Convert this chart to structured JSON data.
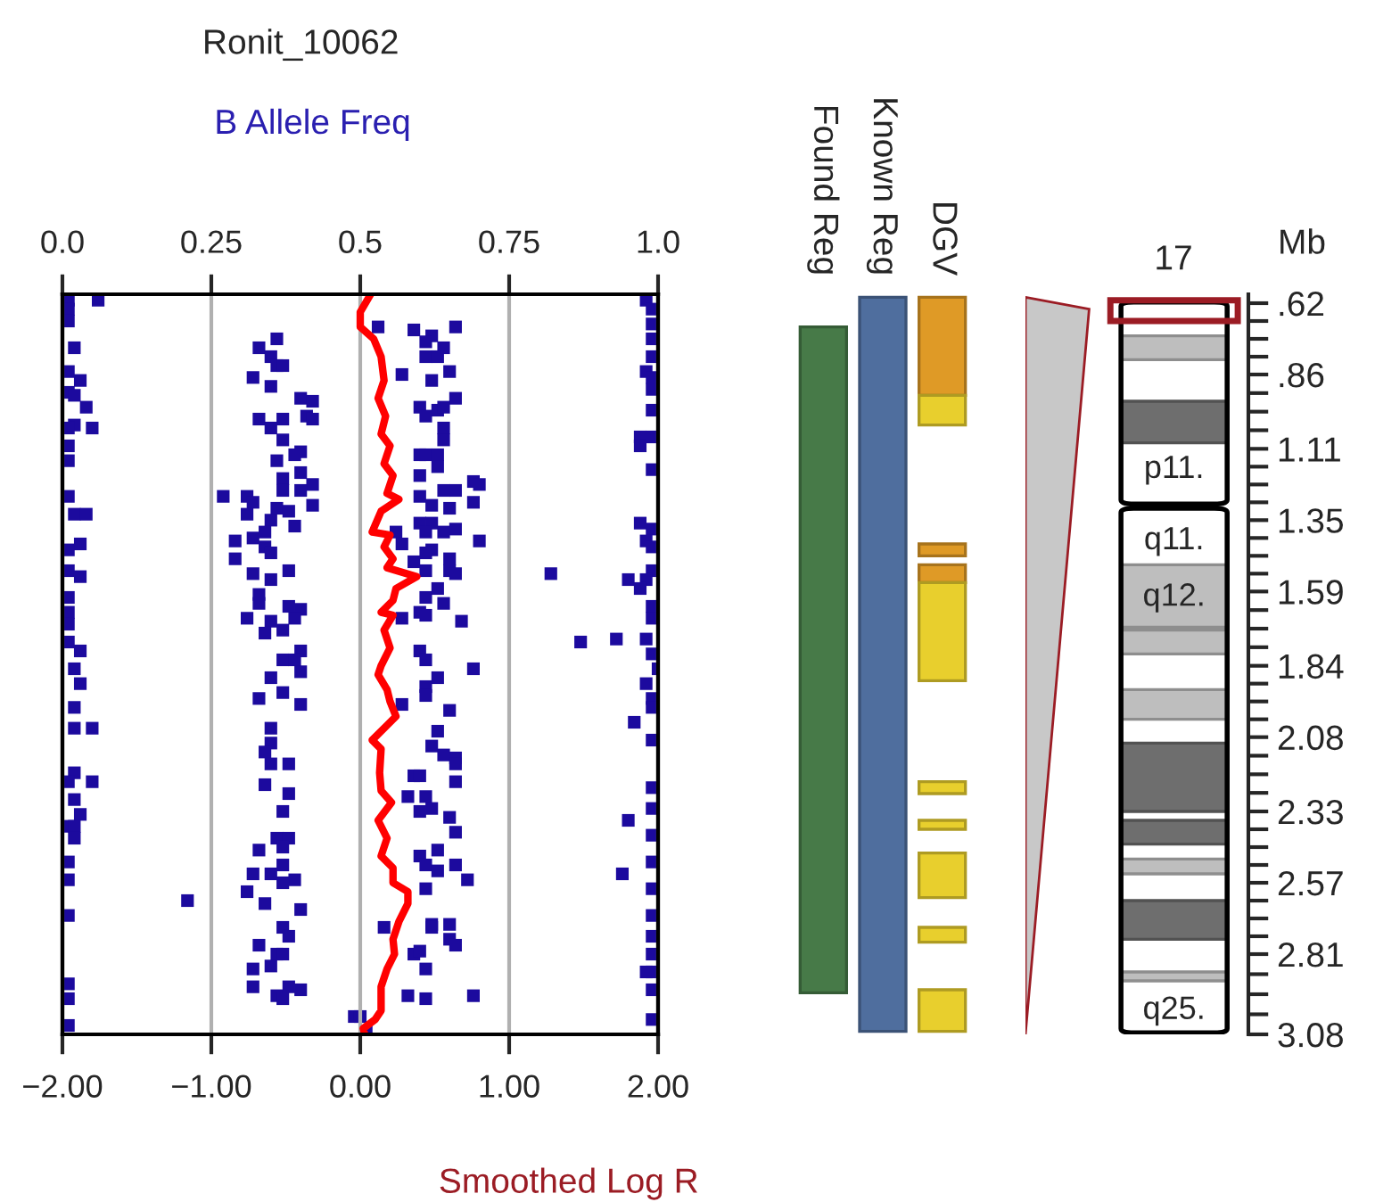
{
  "chart_data": [
    {
      "type": "scatter",
      "title": "Ronit_10062",
      "x2label": "B Allele Freq",
      "xlabel": "Smoothed Log R",
      "xlim": [
        -2,
        2
      ],
      "xticks": [
        {
          "value": -2,
          "label": "−2.00"
        },
        {
          "value": -1,
          "label": "−1.00"
        },
        {
          "value": 0,
          "label": "0.00"
        },
        {
          "value": 1,
          "label": "1.00"
        },
        {
          "value": 2,
          "label": "2.00"
        }
      ],
      "x2lim": [
        0,
        1
      ],
      "x2ticks": [
        {
          "value": 0,
          "label": "0.0"
        },
        0.25,
        0.5,
        0.75,
        {
          "value": 1,
          "label": "1.0"
        }
      ],
      "ylim": [
        3.08,
        0.59
      ],
      "tick_labels": "x",
      "grid": "x",
      "marker": "square",
      "series": [
        {
          "type": "scatter",
          "axis": "x2",
          "color": "#1c0a9e",
          "x": [
            0.01,
            0.01,
            0.01,
            0.02,
            0.01,
            0.03,
            0.01,
            0.02,
            0.04,
            0.02,
            0.05,
            0.01,
            0.01,
            0.01,
            0.01,
            0.02,
            0.04,
            0.03,
            0.01,
            0.01,
            0.03,
            0.01,
            0.01,
            0.01,
            0.01,
            0.03,
            0.02,
            0.06,
            0.36,
            0.33,
            0.35,
            0.36,
            0.37,
            0.32,
            0.35,
            0.4,
            0.42,
            0.33,
            0.37,
            0.35,
            0.41,
            0.42,
            0.37,
            0.4,
            0.39,
            0.36,
            0.37,
            0.4,
            0.42,
            0.37,
            0.4,
            0.27,
            0.31,
            0.32,
            0.42,
            0.36,
            0.38,
            0.31,
            0.35,
            0.34,
            0.39,
            0.29,
            0.32,
            0.34,
            0.35,
            0.29,
            0.32,
            0.35,
            0.38,
            0.33,
            0.33,
            0.38,
            0.4,
            0.31,
            0.39,
            0.35,
            0.34,
            0.37,
            0.4,
            0.37,
            0.39,
            0.53,
            0.59,
            0.66,
            0.62,
            0.61,
            0.64,
            0.61,
            0.63,
            0.65,
            0.57,
            0.62,
            0.66,
            0.6,
            0.63,
            0.64,
            0.61,
            0.64,
            0.64,
            0.6,
            0.61,
            0.63,
            0.63,
            0.6,
            0.69,
            0.7,
            0.64,
            0.66,
            0.6,
            0.69,
            0.62,
            0.65,
            0.6,
            0.56,
            0.62,
            0.61,
            0.64,
            0.66,
            0.7,
            0.57,
            0.62,
            0.61,
            0.65,
            0.59,
            0.61,
            0.65,
            0.66,
            0.63,
            0.61,
            0.64,
            0.6,
            0.61,
            0.57,
            0.67,
            0.6,
            0.61,
            0.69,
            0.82,
            0.87,
            0.93,
            0.98,
            0.98,
            0.99,
            0.99,
            0.99,
            0.99,
            0.98,
            0.99,
            0.99,
            0.99,
            0.97,
            0.97,
            0.99,
            0.99,
            0.97,
            0.99,
            0.98,
            0.99,
            0.99,
            0.95,
            0.98,
            0.97,
            0.99,
            0.99,
            0.99,
            1.0,
            0.03,
            0.02,
            0.02,
            0.05,
            0.02,
            0.01,
            0.05,
            0.02,
            0.03,
            0.01,
            0.02,
            0.02,
            0.01,
            0.01,
            0.21,
            0.01,
            0.01,
            0.01,
            0.01,
            0.35,
            0.4,
            0.33,
            0.37,
            0.4,
            0.35,
            0.35,
            0.34,
            0.35,
            0.38,
            0.34,
            0.38,
            0.37,
            0.36,
            0.38,
            0.33,
            0.37,
            0.37,
            0.32,
            0.35,
            0.39,
            0.37,
            0.31,
            0.34,
            0.4,
            0.37,
            0.38,
            0.33,
            0.36,
            0.37,
            0.35,
            0.32,
            0.32,
            0.36,
            0.38,
            0.4,
            0.37,
            0.63,
            0.61,
            0.61,
            0.57,
            0.65,
            0.63,
            0.62,
            0.64,
            0.66,
            0.66,
            0.59,
            0.6,
            0.66,
            0.58,
            0.61,
            0.62,
            0.6,
            0.65,
            0.66,
            0.6,
            0.63,
            0.61,
            0.63,
            0.66,
            0.68,
            0.61,
            0.54,
            0.62,
            0.65,
            0.62,
            0.65,
            0.66,
            0.59,
            0.6,
            0.61,
            0.58,
            0.61,
            0.69,
            0.49,
            0.5,
            0.51,
            0.98,
            0.99,
            0.99,
            0.96,
            0.99,
            0.99,
            0.99,
            0.95,
            0.99,
            0.99,
            0.94,
            0.99,
            0.99,
            0.99,
            0.99,
            0.98,
            0.99,
            0.99,
            0.99
          ],
          "values": [
            0.61,
            0.64,
            0.68,
            0.77,
            0.85,
            0.88,
            0.92,
            0.93,
            0.97,
            1.03,
            1.04,
            1.04,
            1.1,
            1.15,
            1.27,
            1.33,
            1.33,
            1.43,
            1.45,
            1.52,
            1.54,
            1.61,
            1.66,
            1.7,
            1.76,
            1.79,
            1.85,
            0.61,
            0.74,
            0.77,
            0.8,
            0.83,
            0.83,
            0.87,
            0.9,
            0.94,
            0.95,
            1.01,
            1.01,
            1.04,
            1.0,
            1.01,
            1.08,
            1.12,
            1.13,
            1.15,
            1.21,
            1.19,
            1.23,
            1.25,
            1.25,
            1.27,
            1.27,
            1.29,
            1.3,
            1.31,
            1.32,
            1.33,
            1.35,
            1.39,
            1.37,
            1.42,
            1.41,
            1.44,
            1.46,
            1.48,
            1.53,
            1.55,
            1.52,
            1.6,
            1.63,
            1.64,
            1.65,
            1.68,
            1.68,
            1.69,
            1.73,
            1.72,
            1.79,
            1.82,
            1.82,
            0.7,
            0.71,
            0.7,
            0.73,
            0.75,
            0.77,
            0.8,
            0.8,
            0.85,
            0.86,
            0.88,
            0.94,
            0.97,
            0.98,
            0.97,
            1.0,
            1.04,
            1.08,
            1.13,
            1.13,
            1.13,
            1.17,
            1.2,
            1.22,
            1.23,
            1.25,
            1.25,
            1.27,
            1.29,
            1.3,
            1.31,
            1.36,
            1.39,
            1.36,
            1.39,
            1.39,
            1.38,
            1.42,
            1.43,
            1.45,
            1.46,
            1.48,
            1.49,
            1.52,
            1.52,
            1.53,
            1.58,
            1.61,
            1.63,
            1.66,
            1.67,
            1.68,
            1.69,
            1.79,
            1.82,
            1.85,
            1.53,
            1.76,
            1.75,
            1.75,
            0.61,
            0.64,
            0.69,
            0.74,
            0.8,
            0.85,
            0.87,
            0.91,
            0.98,
            1.07,
            1.1,
            1.07,
            1.18,
            1.36,
            1.38,
            1.42,
            1.44,
            1.52,
            1.55,
            1.55,
            1.58,
            1.64,
            1.68,
            1.8,
            1.85,
            1.9,
            1.98,
            2.05,
            2.05,
            2.2,
            2.23,
            2.23,
            2.29,
            2.34,
            2.38,
            2.38,
            2.42,
            2.5,
            2.56,
            2.63,
            2.68,
            2.91,
            2.96,
            3.05,
            1.88,
            1.86,
            1.95,
            1.93,
            1.97,
            2.05,
            2.1,
            2.13,
            2.17,
            2.17,
            2.24,
            2.27,
            2.33,
            2.42,
            2.42,
            2.46,
            2.45,
            2.51,
            2.54,
            2.54,
            2.56,
            2.57,
            2.6,
            2.64,
            2.66,
            2.72,
            2.75,
            2.78,
            2.81,
            2.81,
            2.85,
            2.86,
            2.92,
            2.95,
            2.92,
            2.93,
            2.96,
            1.88,
            1.91,
            1.94,
            1.97,
            1.99,
            2.06,
            2.11,
            2.14,
            2.15,
            2.17,
            2.21,
            2.21,
            2.23,
            2.28,
            2.28,
            2.32,
            2.33,
            2.35,
            2.4,
            2.48,
            2.46,
            2.51,
            2.53,
            2.51,
            2.56,
            2.59,
            2.72,
            2.71,
            2.71,
            2.72,
            2.76,
            2.78,
            2.81,
            2.8,
            2.86,
            2.95,
            2.96,
            2.95,
            3.02,
            3.02,
            3.07,
            1.9,
            1.95,
            1.98,
            2.03,
            2.09,
            2.25,
            2.32,
            2.36,
            2.41,
            2.5,
            2.54,
            2.59,
            2.68,
            2.75,
            2.81,
            2.87,
            2.87,
            2.93,
            3.03
          ]
        },
        {
          "type": "line",
          "marker": "none",
          "color": "#ff0000",
          "x": [
            0.07,
            0.0,
            0.0,
            0.09,
            0.14,
            0.16,
            0.12,
            0.17,
            0.14,
            0.2,
            0.16,
            0.22,
            0.18,
            0.26,
            0.14,
            0.08,
            0.2,
            0.16,
            0.22,
            0.18,
            0.38,
            0.24,
            0.22,
            0.14,
            0.22,
            0.16,
            0.2,
            0.14,
            0.12,
            0.18,
            0.2,
            0.24,
            0.18,
            0.08,
            0.14,
            0.13,
            0.14,
            0.21,
            0.12,
            0.18,
            0.14,
            0.22,
            0.22,
            0.32,
            0.32,
            0.26,
            0.22,
            0.23,
            0.18,
            0.14,
            0.14,
            0.1,
            0.02,
            0.03
          ],
          "values": [
            0.59,
            0.65,
            0.7,
            0.74,
            0.8,
            0.88,
            0.94,
            1.0,
            1.06,
            1.1,
            1.16,
            1.2,
            1.26,
            1.28,
            1.32,
            1.39,
            1.4,
            1.44,
            1.48,
            1.51,
            1.54,
            1.58,
            1.62,
            1.66,
            1.67,
            1.72,
            1.78,
            1.84,
            1.87,
            1.92,
            1.96,
            2.01,
            2.04,
            2.09,
            2.12,
            2.2,
            2.26,
            2.3,
            2.36,
            2.42,
            2.48,
            2.52,
            2.57,
            2.6,
            2.64,
            2.7,
            2.76,
            2.81,
            2.86,
            2.92,
            3.0,
            3.03,
            3.06,
            3.08
          ]
        }
      ]
    },
    {
      "type": "bar",
      "categories": [
        "Found Reg",
        "Known Reg",
        "DGV"
      ],
      "ylim": [
        3.08,
        0.59
      ],
      "tick_labels": "x",
      "series": [
        {
          "color": "#477a48",
          "values": [
            2.24,
            null,
            null
          ],
          "base": [
            0.7,
            null,
            null
          ]
        },
        {
          "color": "#4f6e9e",
          "values": [
            null,
            2.47,
            null
          ],
          "base": [
            null,
            0.6,
            null
          ]
        },
        {
          "color": "#df9a26",
          "values": [
            null,
            null,
            0.33
          ],
          "base": [
            null,
            null,
            0.6
          ]
        },
        {
          "color": "#e8cf2d",
          "values": [
            null,
            null,
            0.1
          ],
          "base": [
            null,
            null,
            0.93
          ]
        },
        {
          "color": "#df9a26",
          "values": [
            null,
            null,
            0.04
          ],
          "base": [
            null,
            null,
            1.43
          ]
        },
        {
          "color": "#df9a26",
          "values": [
            null,
            null,
            0.06
          ],
          "base": [
            null,
            null,
            1.5
          ]
        },
        {
          "color": "#e8cf2d",
          "values": [
            null,
            null,
            0.33
          ],
          "base": [
            null,
            null,
            1.56
          ]
        },
        {
          "color": "#e8cf2d",
          "values": [
            null,
            null,
            0.04
          ],
          "base": [
            null,
            null,
            2.23
          ]
        },
        {
          "color": "#e8cf2d",
          "values": [
            null,
            null,
            0.03
          ],
          "base": [
            null,
            null,
            2.36
          ]
        },
        {
          "color": "#e8cf2d",
          "values": [
            null,
            null,
            0.15
          ],
          "base": [
            null,
            null,
            2.47
          ]
        },
        {
          "color": "#e8cf2d",
          "values": [
            null,
            null,
            0.05
          ],
          "base": [
            null,
            null,
            2.72
          ]
        },
        {
          "color": "#e8cf2d",
          "values": [
            null,
            null,
            0.14
          ],
          "base": [
            null,
            null,
            2.93
          ]
        }
      ]
    },
    {
      "type": "bar",
      "title": "17",
      "ylabel": "Mb",
      "categories": [
        null
      ],
      "ylim": [
        3.08,
        0.59
      ],
      "tick_labels": "y",
      "yticks": [
        {
          "value": 0.62,
          "label": ".62"
        },
        {
          "value": 0.86,
          "label": ".86"
        },
        1.11,
        1.35,
        1.59,
        1.84,
        2.08,
        2.33,
        2.57,
        2.81,
        3.08
      ],
      "annotations": [
        "p11.",
        "q11.",
        "q12.",
        "q25."
      ],
      "series": [
        {
          "color": "#bebebe",
          "values": [
            0.08
          ],
          "base": [
            0.73
          ]
        },
        {
          "color": "#6e6e6e",
          "values": [
            0.14
          ],
          "base": [
            0.95
          ]
        },
        {
          "color": "#bebebe",
          "values": [
            0.21
          ],
          "base": [
            1.5
          ]
        },
        {
          "color": "#bebebe",
          "values": [
            0.08
          ],
          "base": [
            1.72
          ]
        },
        {
          "color": "#bebebe",
          "values": [
            0.1
          ],
          "base": [
            1.92
          ]
        },
        {
          "color": "#6e6e6e",
          "values": [
            0.23
          ],
          "base": [
            2.1
          ]
        },
        {
          "color": "#6e6e6e",
          "values": [
            0.08
          ],
          "base": [
            2.36
          ]
        },
        {
          "color": "#bebebe",
          "values": [
            0.05
          ],
          "base": [
            2.49
          ]
        },
        {
          "color": "#6e6e6e",
          "values": [
            0.13
          ],
          "base": [
            2.63
          ]
        },
        {
          "color": "#bebebe",
          "values": [
            0.03
          ],
          "base": [
            2.87
          ]
        }
      ]
    }
  ]
}
